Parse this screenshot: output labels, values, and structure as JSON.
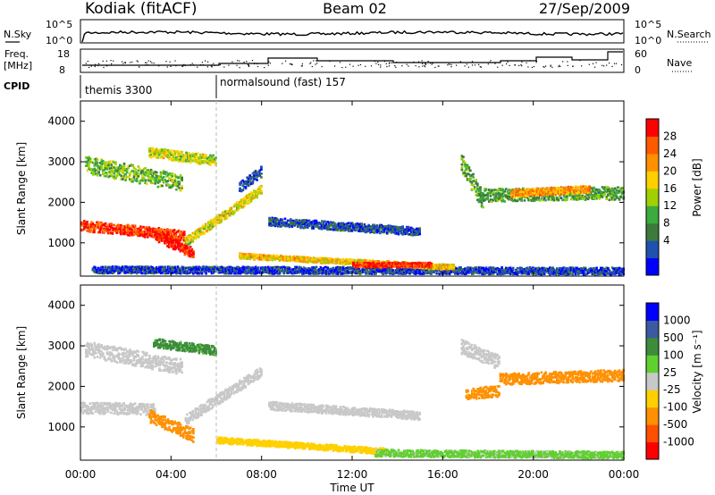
{
  "header": {
    "station": "Kodiak (fitACF)",
    "beam": "Beam 02",
    "date": "27/Sep/2009"
  },
  "panels": {
    "nsky": {
      "left_label": "N.Sky",
      "right_label": "N.Search",
      "left_ticks": [
        "10^5",
        "10^0"
      ],
      "right_ticks": [
        "10^5",
        "10^0"
      ]
    },
    "freq": {
      "left_label_1": "Freq.",
      "left_label_2": "[MHz]",
      "right_label": "Nave",
      "left_ticks": [
        "18",
        "8"
      ],
      "right_ticks": [
        "60",
        "0"
      ]
    },
    "cpid": {
      "label": "CPID",
      "modes": [
        {
          "name": "themis 3300",
          "start_hour": 0
        },
        {
          "name": "normalsound (fast) 157",
          "start_hour": 6
        }
      ]
    }
  },
  "chart_data": [
    {
      "type": "heatmap",
      "title": "Power",
      "ylabel": "Slant Range [km]",
      "ylim": [
        180,
        4500
      ],
      "yticks": [
        "1000",
        "2000",
        "3000",
        "4000"
      ],
      "colorbar_label": "Power [dB]",
      "colorbar_ticks": [
        "28",
        "24",
        "20",
        "16",
        "12",
        "8",
        "4"
      ],
      "color_scale": [
        "#0000ff",
        "#2050b0",
        "#3c7a3c",
        "#3caa3c",
        "#a0d000",
        "#ffd000",
        "#ff9000",
        "#ff5a00",
        "#ff0000"
      ],
      "regions": [
        {
          "start": 0.0,
          "end": 4.6,
          "center_start": 1450,
          "center_end": 1200,
          "width": 260,
          "value": 27
        },
        {
          "start": 3.3,
          "end": 5.0,
          "center_start": 1200,
          "center_end": 750,
          "width": 260,
          "value": 29
        },
        {
          "start": 4.6,
          "end": 8.0,
          "center_start": 1050,
          "center_end": 2350,
          "width": 220,
          "value": 18
        },
        {
          "start": 7.0,
          "end": 8.0,
          "center_start": 2400,
          "center_end": 2800,
          "width": 260,
          "value": 7
        },
        {
          "start": 0.2,
          "end": 4.5,
          "center_start": 2950,
          "center_end": 2500,
          "width": 420,
          "value": 14
        },
        {
          "start": 3.0,
          "end": 6.0,
          "center_start": 3250,
          "center_end": 3050,
          "width": 250,
          "value": 17
        },
        {
          "start": 8.3,
          "end": 15.0,
          "center_start": 1550,
          "center_end": 1300,
          "width": 200,
          "value": 7
        },
        {
          "start": 0.5,
          "end": 24.0,
          "center_start": 360,
          "center_end": 330,
          "width": 170,
          "value": 6
        },
        {
          "start": 7.0,
          "end": 16.5,
          "center_start": 700,
          "center_end": 420,
          "width": 130,
          "value": 20
        },
        {
          "start": 12.0,
          "end": 15.5,
          "center_start": 480,
          "center_end": 480,
          "width": 120,
          "value": 27
        },
        {
          "start": 16.8,
          "end": 17.8,
          "center_start": 3000,
          "center_end": 2000,
          "width": 450,
          "value": 13
        },
        {
          "start": 17.5,
          "end": 24.0,
          "center_start": 2200,
          "center_end": 2250,
          "width": 320,
          "value": 12
        },
        {
          "start": 19.0,
          "end": 22.5,
          "center_start": 2250,
          "center_end": 2350,
          "width": 180,
          "value": 22
        }
      ]
    },
    {
      "type": "heatmap",
      "title": "Velocity",
      "ylabel": "Slant Range [km]",
      "xlabel": "Time UT",
      "ylim": [
        180,
        4500
      ],
      "yticks": [
        "1000",
        "2000",
        "3000",
        "4000"
      ],
      "xticks": [
        "00:00",
        "04:00",
        "08:00",
        "12:00",
        "16:00",
        "20:00",
        "00:00"
      ],
      "colorbar_label": "Velocity [m s⁻¹]",
      "colorbar_ticks": [
        "1000",
        "500",
        "100",
        "25",
        "-25",
        "-100",
        "-500",
        "-1000"
      ],
      "color_scale": [
        "#0000ff",
        "#3c5aa0",
        "#3c8c3c",
        "#60d030",
        "#c8c8c8",
        "#ffd000",
        "#ff9000",
        "#ff5000",
        "#ff0000"
      ],
      "regions": [
        {
          "start": 0.0,
          "end": 3.3,
          "center_start": 1500,
          "center_end": 1450,
          "width": 280,
          "value": 0
        },
        {
          "start": 3.0,
          "end": 5.0,
          "center_start": 1300,
          "center_end": 800,
          "width": 320,
          "value": -250
        },
        {
          "start": 4.6,
          "end": 8.0,
          "center_start": 1200,
          "center_end": 2400,
          "width": 260,
          "value": 5
        },
        {
          "start": 0.2,
          "end": 4.5,
          "center_start": 2950,
          "center_end": 2500,
          "width": 380,
          "value": -2
        },
        {
          "start": 3.2,
          "end": 6.0,
          "center_start": 3100,
          "center_end": 2900,
          "width": 220,
          "value": 150
        },
        {
          "start": 8.3,
          "end": 15.0,
          "center_start": 1550,
          "center_end": 1300,
          "width": 200,
          "value": 0
        },
        {
          "start": 6.0,
          "end": 13.5,
          "center_start": 700,
          "center_end": 420,
          "width": 150,
          "value": -60
        },
        {
          "start": 13.0,
          "end": 24.0,
          "center_start": 380,
          "center_end": 330,
          "width": 170,
          "value": 40
        },
        {
          "start": 16.8,
          "end": 18.5,
          "center_start": 3000,
          "center_end": 2600,
          "width": 350,
          "value": 0
        },
        {
          "start": 17.0,
          "end": 18.5,
          "center_start": 1850,
          "center_end": 1900,
          "width": 280,
          "value": -150
        },
        {
          "start": 18.5,
          "end": 24.0,
          "center_start": 2200,
          "center_end": 2300,
          "width": 280,
          "value": -200
        }
      ]
    }
  ]
}
